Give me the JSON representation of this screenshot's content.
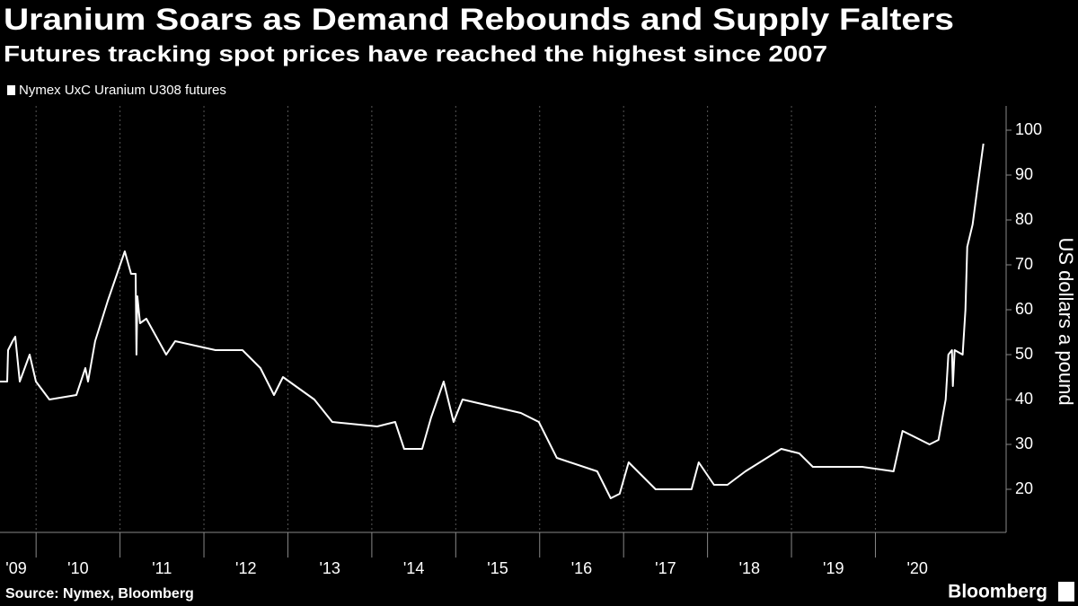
{
  "chart_data": {
    "type": "line",
    "title": "Uranium Soars as Demand Rebounds and Supply Falters",
    "subtitle": "Futures tracking spot prices have reached the highest since 2007",
    "y_label": "US dollars a pound",
    "source": "Source: Nymex, Bloomberg",
    "brand": "Bloomberg",
    "background": "#000000",
    "grid": true,
    "x": [
      2009.57,
      2009.656,
      2009.666,
      2009.72,
      2009.752,
      2009.805,
      2009.923,
      2009.998,
      2010.159,
      2010.48,
      2010.587,
      2010.619,
      2010.704,
      2010.854,
      2011.057,
      2011.132,
      2011.186,
      2011.196,
      2011.207,
      2011.239,
      2011.314,
      2011.55,
      2011.657,
      2012.138,
      2012.459,
      2012.673,
      2012.834,
      2012.941,
      2013.315,
      2013.529,
      2014.064,
      2014.278,
      2014.385,
      2014.599,
      2014.706,
      2014.856,
      2014.974,
      2015.081,
      2015.776,
      2015.99,
      2016.204,
      2016.686,
      2016.846,
      2016.953,
      2017.06,
      2017.274,
      2017.381,
      2017.809,
      2017.895,
      2018.077,
      2018.237,
      2018.451,
      2018.879,
      2019.093,
      2019.254,
      2019.842,
      2020.217,
      2020.324,
      2020.645,
      2020.752,
      2020.837,
      2020.869,
      2020.912,
      2020.923,
      2020.944,
      2021.04,
      2021.073,
      2021.094,
      2021.158,
      2021.222,
      2021.287
    ],
    "series": [
      {
        "name": "Nymex UxC Uranium U308 futures",
        "color": "#ffffff",
        "values": [
          44,
          44,
          51,
          53,
          54,
          44,
          50,
          44,
          40,
          41,
          47,
          44,
          53,
          62,
          73,
          68,
          68,
          50,
          63,
          57,
          58,
          50,
          53,
          51,
          51,
          47,
          41,
          45,
          40,
          35,
          34,
          35,
          29,
          29,
          36,
          44,
          35,
          40,
          37,
          35,
          27,
          24,
          18,
          19,
          26,
          22,
          20,
          20,
          26,
          21,
          21,
          24,
          29,
          28,
          25,
          25,
          24,
          33,
          30,
          31,
          40,
          50,
          51,
          43,
          51,
          50,
          60,
          74,
          79,
          88,
          97
        ]
      }
    ],
    "xlim": [
      2009.57,
      2021.29
    ],
    "xticks": [
      {
        "value": 2009,
        "label": "'09"
      },
      {
        "value": 2010,
        "label": "'10"
      },
      {
        "value": 2011,
        "label": "'11"
      },
      {
        "value": 2012,
        "label": "'12"
      },
      {
        "value": 2013,
        "label": "'13"
      },
      {
        "value": 2014,
        "label": "'14"
      },
      {
        "value": 2015,
        "label": "'15"
      },
      {
        "value": 2016,
        "label": "'16"
      },
      {
        "value": 2017,
        "label": "'17"
      },
      {
        "value": 2018,
        "label": "'18"
      },
      {
        "value": 2019,
        "label": "'19"
      },
      {
        "value": 2020,
        "label": "'20"
      }
    ],
    "ylim": [
      10.4,
      105.4
    ],
    "yticks": [
      20,
      30,
      40,
      50,
      60,
      70,
      80,
      90,
      100
    ]
  }
}
